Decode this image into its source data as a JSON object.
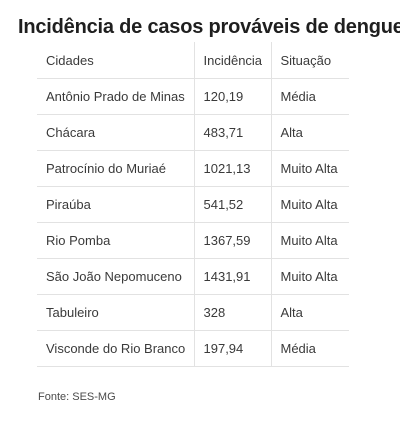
{
  "chart_data": {
    "type": "table",
    "title": "Incidência de casos prováveis de dengue",
    "columns": [
      "Cidades",
      "Incidência",
      "Situação"
    ],
    "rows": [
      [
        "Antônio Prado de Minas",
        "120,19",
        "Média"
      ],
      [
        "Chácara",
        "483,71",
        "Alta"
      ],
      [
        "Patrocínio do Muriaé",
        "1021,13",
        "Muito Alta"
      ],
      [
        "Piraúba",
        "541,52",
        "Muito Alta"
      ],
      [
        "Rio Pomba",
        "1367,59",
        "Muito Alta"
      ],
      [
        "São João Nepomuceno",
        "1431,91",
        "Muito Alta"
      ],
      [
        "Tabuleiro",
        "328",
        "Alta"
      ],
      [
        "Visconde do Rio Branco",
        "197,94",
        "Média"
      ]
    ],
    "source": "Fonte: SES-MG"
  }
}
